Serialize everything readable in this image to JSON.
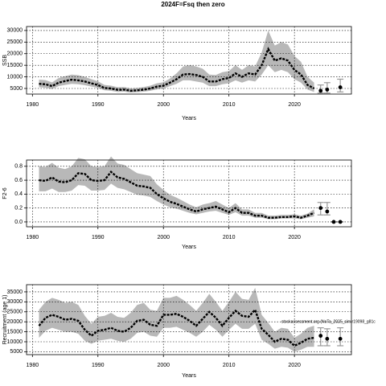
{
  "title": "2024F=Fsq then zero",
  "chart_data": [
    {
      "type": "line",
      "xlabel": "Years",
      "ylabel": "SSB",
      "xlim": [
        1979.1,
        2028.7
      ],
      "ylim": [
        2570,
        31700
      ],
      "xticks": [
        1980,
        1990,
        2000,
        2010,
        2020
      ],
      "yticks": [
        5000,
        10000,
        15000,
        20000,
        25000,
        30000
      ],
      "grid": true,
      "x": [
        1981,
        1982,
        1983,
        1984,
        1985,
        1986,
        1987,
        1988,
        1989,
        1990,
        1991,
        1992,
        1993,
        1994,
        1995,
        1996,
        1997,
        1998,
        1999,
        2000,
        2001,
        2002,
        2003,
        2004,
        2005,
        2006,
        2007,
        2008,
        2009,
        2010,
        2011,
        2012,
        2013,
        2014,
        2015,
        2016,
        2017,
        2018,
        2019,
        2020,
        2021,
        2022,
        2023
      ],
      "series": [
        {
          "color": "#000000",
          "band_color": "#b8b8b8",
          "values": [
            7000,
            6800,
            6000,
            7500,
            8200,
            8800,
            8500,
            8000,
            7200,
            6500,
            5200,
            5000,
            4400,
            4500,
            4000,
            4200,
            4500,
            5000,
            5800,
            6200,
            7500,
            9000,
            11000,
            11200,
            10800,
            10000,
            8000,
            8000,
            9000,
            9500,
            11500,
            10000,
            11500,
            11000,
            15000,
            22000,
            17000,
            18000,
            17000,
            13000,
            11000,
            6500,
            5000
          ],
          "low": [
            5500,
            5300,
            4800,
            6000,
            6500,
            7000,
            6800,
            6400,
            5800,
            5200,
            4200,
            4000,
            3500,
            3600,
            3200,
            3400,
            3600,
            4000,
            4600,
            5000,
            6000,
            7000,
            8500,
            8500,
            8000,
            7500,
            6000,
            6000,
            6800,
            7200,
            8500,
            7500,
            8500,
            8000,
            11000,
            15000,
            12000,
            13000,
            12000,
            9000,
            7500,
            4500,
            3500
          ],
          "high": [
            8800,
            8600,
            7600,
            9500,
            10300,
            11000,
            10700,
            10000,
            9000,
            8100,
            6500,
            6200,
            5500,
            5600,
            5000,
            5200,
            5600,
            6200,
            7200,
            7700,
            9300,
            11500,
            14500,
            15000,
            14500,
            13500,
            11000,
            10800,
            12000,
            12500,
            15000,
            13000,
            15000,
            14500,
            20500,
            30000,
            23500,
            25000,
            24000,
            19000,
            16500,
            10000,
            7500
          ]
        }
      ],
      "projection": {
        "color": "#000000",
        "bar_color": "#999999",
        "x": [
          2024,
          2025,
          2027
        ],
        "values": [
          4000,
          4500,
          5500
        ],
        "low": [
          3000,
          3000,
          3500
        ],
        "high": [
          6500,
          7500,
          9000
        ]
      }
    },
    {
      "type": "line",
      "xlabel": "Years",
      "ylabel": "F2-6",
      "xlim": [
        1979.1,
        2028.7
      ],
      "ylim": [
        -0.07,
        0.89
      ],
      "xticks": [
        1980,
        1990,
        2000,
        2010,
        2020
      ],
      "yticks": [
        {
          "value": 0,
          "label": "0.0"
        },
        {
          "value": 0.2,
          "label": "0.2"
        },
        0.4,
        0.6,
        0.8
      ],
      "grid": true,
      "x": [
        1981,
        1982,
        1983,
        1984,
        1985,
        1986,
        1987,
        1988,
        1989,
        1990,
        1991,
        1992,
        1993,
        1994,
        1995,
        1996,
        1997,
        1998,
        1999,
        2000,
        2001,
        2002,
        2003,
        2004,
        2005,
        2006,
        2007,
        2008,
        2009,
        2010,
        2011,
        2012,
        2013,
        2014,
        2015,
        2016,
        2017,
        2018,
        2019,
        2020,
        2021,
        2022,
        2023
      ],
      "series": [
        {
          "color": "#000000",
          "band_color": "#b8b8b8",
          "values": [
            0.6,
            0.59,
            0.64,
            0.58,
            0.57,
            0.6,
            0.7,
            0.69,
            0.6,
            0.59,
            0.6,
            0.72,
            0.64,
            0.62,
            0.57,
            0.52,
            0.51,
            0.49,
            0.4,
            0.34,
            0.29,
            0.26,
            0.22,
            0.18,
            0.15,
            0.18,
            0.2,
            0.22,
            0.18,
            0.14,
            0.2,
            0.13,
            0.13,
            0.09,
            0.09,
            0.06,
            0.06,
            0.07,
            0.07,
            0.08,
            0.06,
            0.09,
            0.13
          ],
          "low": [
            0.44,
            0.44,
            0.48,
            0.43,
            0.43,
            0.45,
            0.53,
            0.52,
            0.45,
            0.45,
            0.46,
            0.55,
            0.49,
            0.47,
            0.43,
            0.39,
            0.38,
            0.36,
            0.3,
            0.25,
            0.21,
            0.19,
            0.16,
            0.13,
            0.11,
            0.13,
            0.15,
            0.16,
            0.13,
            0.1,
            0.14,
            0.09,
            0.09,
            0.06,
            0.06,
            0.04,
            0.04,
            0.05,
            0.05,
            0.05,
            0.04,
            0.06,
            0.08
          ],
          "high": [
            0.8,
            0.79,
            0.85,
            0.78,
            0.76,
            0.8,
            0.92,
            0.9,
            0.8,
            0.79,
            0.8,
            0.94,
            0.84,
            0.82,
            0.76,
            0.7,
            0.68,
            0.66,
            0.54,
            0.46,
            0.39,
            0.35,
            0.3,
            0.25,
            0.21,
            0.25,
            0.27,
            0.3,
            0.25,
            0.2,
            0.27,
            0.18,
            0.18,
            0.13,
            0.13,
            0.09,
            0.09,
            0.1,
            0.1,
            0.11,
            0.09,
            0.12,
            0.18
          ]
        }
      ],
      "projection": {
        "color": "#000000",
        "bar_color": "#999999",
        "x": [
          2024,
          2025,
          2026,
          2027
        ],
        "values": [
          0.2,
          0.15,
          0,
          0
        ],
        "low": [
          0.1,
          0.1,
          0,
          0
        ],
        "high": [
          0.28,
          0.28,
          0,
          0
        ]
      }
    },
    {
      "type": "line",
      "xlabel": "Years",
      "ylabel": "Recruitment (age 1)",
      "annotation": "stockassessment.org (NoTa_2025_sim.r19098_g81c",
      "xlim": [
        1979.1,
        2028.7
      ],
      "ylim": [
        3550,
        38600
      ],
      "xticks": [
        1980,
        1990,
        2000,
        2010,
        2020
      ],
      "yticks": [
        5000,
        10000,
        15000,
        20000,
        25000,
        30000,
        35000
      ],
      "grid": true,
      "x": [
        1981,
        1982,
        1983,
        1984,
        1985,
        1986,
        1987,
        1988,
        1989,
        1990,
        1991,
        1992,
        1993,
        1994,
        1995,
        1996,
        1997,
        1998,
        1999,
        2000,
        2001,
        2002,
        2003,
        2004,
        2005,
        2006,
        2007,
        2008,
        2009,
        2010,
        2011,
        2012,
        2013,
        2014,
        2015,
        2016,
        2017,
        2018,
        2019,
        2020,
        2021,
        2022,
        2023
      ],
      "series": [
        {
          "color": "#000000",
          "band_color": "#b8b8b8",
          "values": [
            18000,
            22000,
            23500,
            22500,
            21000,
            21500,
            20500,
            16000,
            13000,
            15500,
            16000,
            17000,
            15500,
            15000,
            17000,
            20500,
            21000,
            18500,
            18000,
            23500,
            23500,
            24000,
            22500,
            20500,
            18000,
            21500,
            25000,
            22000,
            18000,
            22000,
            25500,
            23000,
            22500,
            26000,
            16500,
            13500,
            10000,
            11500,
            11000,
            8000,
            9500,
            11500,
            12000
          ],
          "low": [
            12000,
            15500,
            17000,
            16000,
            15000,
            15000,
            14000,
            10500,
            9000,
            10500,
            11000,
            11500,
            10500,
            10000,
            11500,
            14500,
            15000,
            13000,
            12500,
            17000,
            17000,
            17500,
            16000,
            14500,
            12500,
            15000,
            18500,
            16000,
            12500,
            16000,
            19000,
            16500,
            16500,
            19000,
            11000,
            9000,
            6500,
            7500,
            7000,
            5000,
            6000,
            7500,
            7500
          ],
          "high": [
            26000,
            30000,
            32000,
            31000,
            29500,
            30000,
            28500,
            23000,
            19000,
            22500,
            23000,
            24500,
            22500,
            22000,
            24500,
            28500,
            29500,
            26000,
            25500,
            32000,
            32000,
            33000,
            31000,
            28500,
            25500,
            29500,
            34000,
            30000,
            25500,
            30000,
            35000,
            31500,
            31000,
            37000,
            23500,
            19500,
            15000,
            17000,
            16500,
            12000,
            14000,
            17000,
            18000
          ]
        }
      ],
      "projection": {
        "color": "#000000",
        "bar_color": "#999999",
        "x": [
          2024,
          2025,
          2027
        ],
        "values": [
          13000,
          11500,
          11500
        ],
        "low": [
          8000,
          8000,
          8000
        ],
        "high": [
          17000,
          16500,
          17000
        ]
      }
    }
  ]
}
